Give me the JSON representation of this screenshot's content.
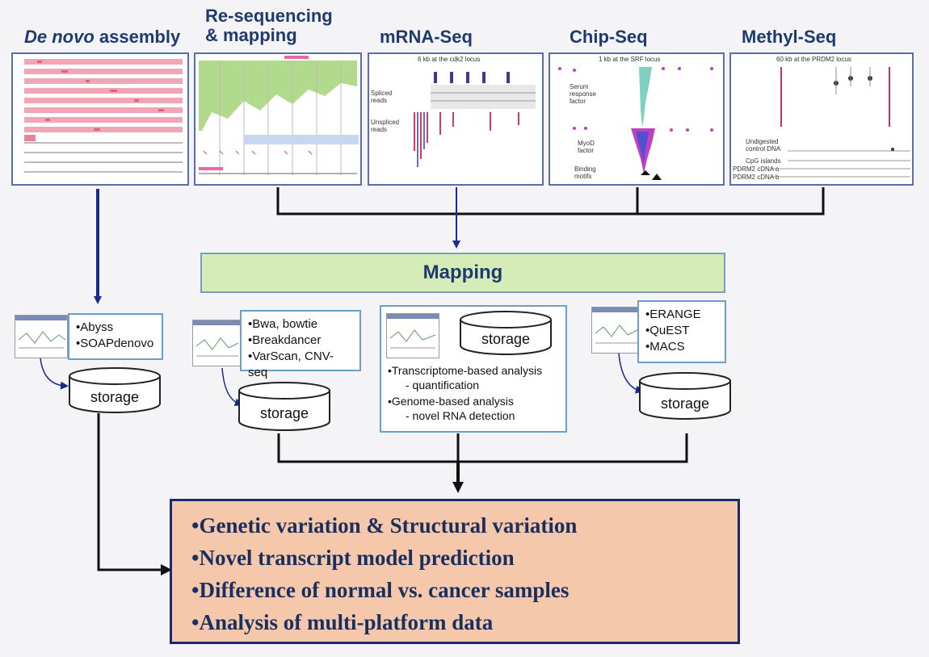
{
  "headers": {
    "denovo_italic": "De novo",
    "denovo_rest": " assembly",
    "reseq_line1": "Re-sequencing",
    "reseq_line2": "& mapping",
    "mrna": "mRNA-Seq",
    "chip": "Chip-Seq",
    "methyl": "Methyl-Seq"
  },
  "panels": {
    "mrna": {
      "caption": "6 kb at the cdk2 locus",
      "spliced": "Spliced reads",
      "unspliced": "Unspliced reads"
    },
    "chip": {
      "caption": "1 kb at the SRF locus",
      "serum": "Serum response factor",
      "myod": "MyoD factor",
      "binding": "Binding motifs"
    },
    "methyl": {
      "caption": "60 kb at the PRDM2 locus",
      "undigested": "Undigested control DNA",
      "cpg": "CpG islands",
      "cdna_a": "PDRM2 cDNA a",
      "cdna_b": "PDRM2 cDNA b"
    }
  },
  "mapping_label": "Mapping",
  "tools": {
    "denovo": [
      "Abyss",
      "SOAPdenovo"
    ],
    "reseq": [
      "Bwa, bowtie",
      "Breakdancer",
      "VarScan, CNV-seq"
    ],
    "chip": [
      "ERANGE",
      "QuEST",
      "MACS"
    ]
  },
  "storage_label": "storage",
  "mrna_analysis": {
    "line1": "•Transcriptome-based analysis",
    "line2": "- quantification",
    "line3": "•Genome-based analysis",
    "line4": "- novel RNA detection"
  },
  "results": [
    "Genetic variation & Structural variation",
    "Novel transcript model prediction",
    "Difference of normal vs. cancer samples",
    "Analysis of multi-platform  data"
  ],
  "colors": {
    "mapping_fill": "#d5ebb8",
    "results_fill": "#f5c8ab",
    "header_text": "#1f3a6e",
    "arrow_blue": "#1a2a8e"
  }
}
